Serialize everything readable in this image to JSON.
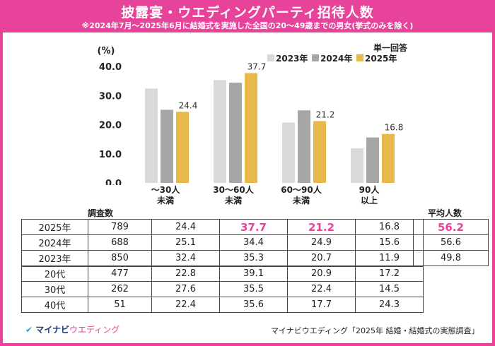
{
  "header": {
    "title": "披露宴・ウエディングパーティ招待人数",
    "subtitle": "※2024年7月～2025年6月に結婚式を実施した全国の20～49歳までの男女(挙式のみを除く)"
  },
  "colors": {
    "accent": "#e8439b",
    "y2023": "#d9d9d9",
    "y2024": "#a6a6a6",
    "y2025": "#e8b84a"
  },
  "chart_data": {
    "type": "bar",
    "ylabel": "(%)",
    "note": "単一回答",
    "ylim": [
      0,
      40
    ],
    "yticks": [
      "0.0",
      "10.0",
      "20.0",
      "30.0",
      "40.0"
    ],
    "categories": [
      "～30人\n未満",
      "30～60人\n未満",
      "60～90人\n未満",
      "90人\n以上"
    ],
    "series": [
      {
        "name": "2023年",
        "values": [
          32.4,
          35.3,
          20.7,
          11.9
        ]
      },
      {
        "name": "2024年",
        "values": [
          25.1,
          34.4,
          24.9,
          15.6
        ]
      },
      {
        "name": "2025年",
        "values": [
          24.4,
          37.7,
          21.2,
          16.8
        ]
      }
    ],
    "labels_2025": [
      "24.4",
      "37.7",
      "21.2",
      "16.8"
    ]
  },
  "table": {
    "n_header": "調査数",
    "rows": [
      {
        "label": "2025年",
        "n": "789",
        "v": [
          "24.4",
          "37.7",
          "21.2",
          "16.8"
        ]
      },
      {
        "label": "2024年",
        "n": "688",
        "v": [
          "25.1",
          "34.4",
          "24.9",
          "15.6"
        ]
      },
      {
        "label": "2023年",
        "n": "850",
        "v": [
          "32.4",
          "35.3",
          "20.7",
          "11.9"
        ]
      },
      {
        "label": "20代",
        "n": "477",
        "v": [
          "22.8",
          "39.1",
          "20.9",
          "17.2"
        ]
      },
      {
        "label": "30代",
        "n": "262",
        "v": [
          "27.6",
          "35.5",
          "22.4",
          "14.5"
        ]
      },
      {
        "label": "40代",
        "n": "51",
        "v": [
          "22.4",
          "35.6",
          "17.7",
          "24.3"
        ]
      }
    ]
  },
  "average": {
    "header": "平均人数",
    "values": [
      "56.2",
      "56.6",
      "49.8"
    ]
  },
  "footer": {
    "logo_main": "マイナビ",
    "logo_sub": "ウエディング",
    "source": "マイナビウエディング「2025年 結婚・結婚式の実態調査」"
  }
}
